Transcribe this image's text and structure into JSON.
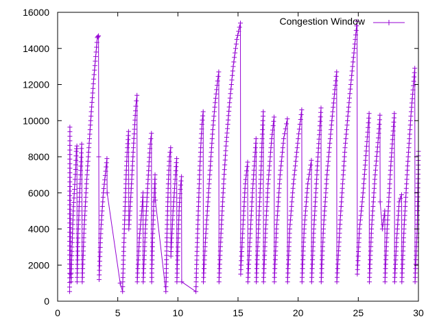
{
  "chart_data": {
    "type": "line",
    "title": "",
    "xlabel": "",
    "ylabel": "",
    "xlim": [
      0,
      30
    ],
    "ylim": [
      0,
      16000
    ],
    "x_ticks": [
      0,
      5,
      10,
      15,
      20,
      25,
      30
    ],
    "y_ticks": [
      0,
      2000,
      4000,
      6000,
      8000,
      10000,
      12000,
      14000,
      16000
    ],
    "grid": false,
    "legend_position": "top-right",
    "series": [
      {
        "name": "Congestion Window",
        "color": "#9400d3",
        "marker": "plus",
        "points": [
          [
            1.0,
            536
          ],
          [
            1.02,
            9640
          ],
          [
            1.08,
            1500
          ],
          [
            1.12,
            1072
          ],
          [
            1.2,
            3000
          ],
          [
            1.3,
            5000
          ],
          [
            1.4,
            6200
          ],
          [
            1.5,
            7300
          ],
          [
            1.55,
            8300
          ],
          [
            1.6,
            8600
          ],
          [
            1.62,
            1072
          ],
          [
            1.7,
            3500
          ],
          [
            1.8,
            5500
          ],
          [
            1.9,
            7000
          ],
          [
            2.0,
            8700
          ],
          [
            2.05,
            1072
          ],
          [
            2.2,
            4000
          ],
          [
            2.4,
            6500
          ],
          [
            2.6,
            8500
          ],
          [
            2.8,
            10500
          ],
          [
            3.0,
            12300
          ],
          [
            3.2,
            13800
          ],
          [
            3.3,
            14600
          ],
          [
            3.4,
            14700
          ],
          [
            3.42,
            8000
          ],
          [
            3.45,
            1200
          ],
          [
            3.6,
            4000
          ],
          [
            3.8,
            6000
          ],
          [
            4.0,
            7200
          ],
          [
            4.1,
            7900
          ],
          [
            4.12,
            6000
          ],
          [
            5.2,
            1000
          ],
          [
            5.4,
            536
          ],
          [
            5.42,
            1072
          ],
          [
            5.5,
            3000
          ],
          [
            5.6,
            5000
          ],
          [
            5.7,
            7000
          ],
          [
            5.8,
            8500
          ],
          [
            5.9,
            9400
          ],
          [
            5.92,
            4000
          ],
          [
            6.1,
            6000
          ],
          [
            6.3,
            8500
          ],
          [
            6.5,
            10800
          ],
          [
            6.6,
            11400
          ],
          [
            6.62,
            1072
          ],
          [
            6.8,
            3500
          ],
          [
            7.0,
            5000
          ],
          [
            7.1,
            6000
          ],
          [
            7.12,
            1072
          ],
          [
            7.3,
            4000
          ],
          [
            7.5,
            6500
          ],
          [
            7.7,
            8700
          ],
          [
            7.8,
            9300
          ],
          [
            7.82,
            1072
          ],
          [
            7.9,
            3500
          ],
          [
            8.0,
            5500
          ],
          [
            8.1,
            7000
          ],
          [
            8.12,
            5600
          ],
          [
            9.0,
            536
          ],
          [
            9.02,
            1072
          ],
          [
            9.1,
            4000
          ],
          [
            9.2,
            6500
          ],
          [
            9.3,
            8000
          ],
          [
            9.4,
            8500
          ],
          [
            9.42,
            2500
          ],
          [
            9.6,
            5000
          ],
          [
            9.8,
            7000
          ],
          [
            9.9,
            7900
          ],
          [
            9.92,
            1072
          ],
          [
            10.0,
            3000
          ],
          [
            10.1,
            5000
          ],
          [
            10.2,
            6200
          ],
          [
            10.3,
            6900
          ],
          [
            10.32,
            1072
          ],
          [
            11.5,
            536
          ],
          [
            11.52,
            1072
          ],
          [
            11.6,
            3000
          ],
          [
            11.7,
            5000
          ],
          [
            11.8,
            7000
          ],
          [
            11.9,
            8500
          ],
          [
            12.0,
            9800
          ],
          [
            12.1,
            10500
          ],
          [
            12.12,
            1072
          ],
          [
            12.3,
            3500
          ],
          [
            12.5,
            5500
          ],
          [
            12.7,
            7500
          ],
          [
            12.9,
            9500
          ],
          [
            13.1,
            11000
          ],
          [
            13.3,
            12200
          ],
          [
            13.4,
            12700
          ],
          [
            13.42,
            1072
          ],
          [
            13.6,
            4000
          ],
          [
            13.8,
            6500
          ],
          [
            14.0,
            8600
          ],
          [
            14.3,
            11000
          ],
          [
            14.6,
            13000
          ],
          [
            14.9,
            14500
          ],
          [
            15.2,
            15400
          ],
          [
            15.22,
            1500
          ],
          [
            15.4,
            4000
          ],
          [
            15.6,
            6500
          ],
          [
            15.8,
            7700
          ],
          [
            15.82,
            1072
          ],
          [
            16.0,
            3500
          ],
          [
            16.2,
            6000
          ],
          [
            16.4,
            8000
          ],
          [
            16.5,
            9000
          ],
          [
            16.52,
            1072
          ],
          [
            16.7,
            4000
          ],
          [
            16.9,
            7000
          ],
          [
            17.0,
            9000
          ],
          [
            17.1,
            10500
          ],
          [
            17.12,
            1072
          ],
          [
            17.3,
            4000
          ],
          [
            17.5,
            6500
          ],
          [
            17.8,
            9000
          ],
          [
            18.0,
            10200
          ],
          [
            18.02,
            1072
          ],
          [
            18.2,
            4000
          ],
          [
            18.5,
            7000
          ],
          [
            18.8,
            9000
          ],
          [
            19.1,
            10100
          ],
          [
            19.12,
            1072
          ],
          [
            19.3,
            4000
          ],
          [
            19.6,
            6500
          ],
          [
            20.0,
            9000
          ],
          [
            20.3,
            10600
          ],
          [
            20.32,
            1072
          ],
          [
            20.5,
            4000
          ],
          [
            20.8,
            6500
          ],
          [
            21.1,
            7800
          ],
          [
            21.12,
            1072
          ],
          [
            21.3,
            4000
          ],
          [
            21.6,
            7500
          ],
          [
            21.9,
            10700
          ],
          [
            21.92,
            1072
          ],
          [
            22.1,
            4000
          ],
          [
            22.4,
            7000
          ],
          [
            22.8,
            10000
          ],
          [
            23.2,
            12700
          ],
          [
            23.22,
            1072
          ],
          [
            23.5,
            4500
          ],
          [
            23.9,
            8500
          ],
          [
            24.3,
            11500
          ],
          [
            24.6,
            13500
          ],
          [
            24.9,
            15500
          ],
          [
            24.92,
            1500
          ],
          [
            25.1,
            4000
          ],
          [
            25.4,
            6000
          ],
          [
            25.6,
            7800
          ],
          [
            25.9,
            10400
          ],
          [
            25.92,
            1072
          ],
          [
            26.1,
            4000
          ],
          [
            26.4,
            7000
          ],
          [
            26.7,
            9300
          ],
          [
            26.8,
            10300
          ],
          [
            26.82,
            5500
          ],
          [
            27.0,
            4000
          ],
          [
            27.2,
            5000
          ],
          [
            27.22,
            1072
          ],
          [
            27.4,
            4000
          ],
          [
            27.7,
            7500
          ],
          [
            28.0,
            10400
          ],
          [
            28.02,
            1072
          ],
          [
            28.2,
            3500
          ],
          [
            28.4,
            5500
          ],
          [
            28.6,
            5900
          ],
          [
            28.62,
            1072
          ],
          [
            28.8,
            4000
          ],
          [
            29.1,
            7500
          ],
          [
            29.4,
            10500
          ],
          [
            29.7,
            12900
          ],
          [
            29.72,
            1072
          ],
          [
            29.9,
            4000
          ],
          [
            30.0,
            8300
          ]
        ]
      }
    ]
  }
}
